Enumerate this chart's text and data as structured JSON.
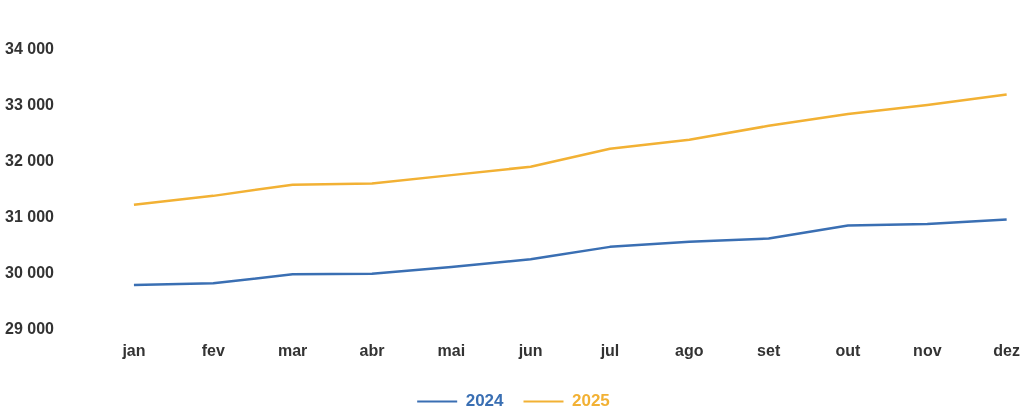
{
  "chart_data": {
    "type": "line",
    "categories": [
      "jan",
      "fev",
      "mar",
      "abr",
      "mai",
      "jun",
      "jul",
      "ago",
      "set",
      "out",
      "nov",
      "dez"
    ],
    "series": [
      {
        "name": "2024",
        "color": "#3a6fb3",
        "values": [
          29800,
          29830,
          29990,
          30000,
          30120,
          30260,
          30480,
          30570,
          30630,
          30860,
          30890,
          30970
        ]
      },
      {
        "name": "2025",
        "color": "#f2b134",
        "values": [
          31230,
          31390,
          31590,
          31610,
          31760,
          31910,
          32230,
          32390,
          32640,
          32850,
          33010,
          33200
        ]
      }
    ],
    "ylim": [
      29000,
      34000
    ],
    "yticks": [
      {
        "value": 29000,
        "label": "29 000"
      },
      {
        "value": 30000,
        "label": "30 000"
      },
      {
        "value": 31000,
        "label": "31 000"
      },
      {
        "value": 32000,
        "label": "32 000"
      },
      {
        "value": 33000,
        "label": "33 000"
      },
      {
        "value": 34000,
        "label": "34 000"
      }
    ],
    "grid": false,
    "legend": "bottom",
    "marker": "none",
    "line_style": "solid"
  }
}
